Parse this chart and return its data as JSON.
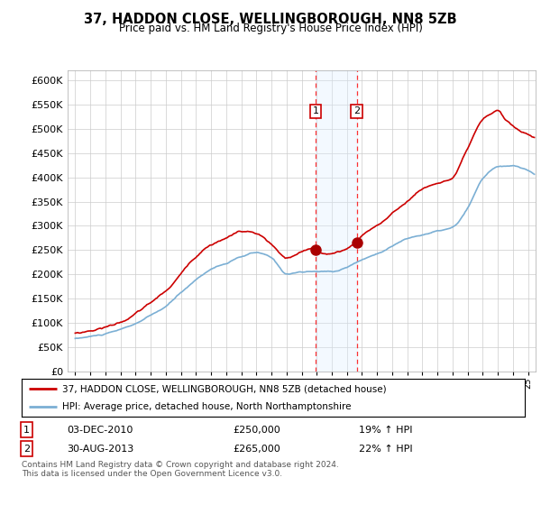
{
  "title": "37, HADDON CLOSE, WELLINGBOROUGH, NN8 5ZB",
  "subtitle": "Price paid vs. HM Land Registry's House Price Index (HPI)",
  "legend_line1": "37, HADDON CLOSE, WELLINGBOROUGH, NN8 5ZB (detached house)",
  "legend_line2": "HPI: Average price, detached house, North Northamptonshire",
  "sale1_date": "03-DEC-2010",
  "sale1_price": "£250,000",
  "sale1_hpi": "19% ↑ HPI",
  "sale2_date": "30-AUG-2013",
  "sale2_price": "£265,000",
  "sale2_hpi": "22% ↑ HPI",
  "footer": "Contains HM Land Registry data © Crown copyright and database right 2024.\nThis data is licensed under the Open Government Licence v3.0.",
  "hpi_color": "#7bafd4",
  "price_color": "#cc0000",
  "sale_marker_color": "#aa0000",
  "highlight_color": "#ddeeff",
  "sale1_x": 2010.92,
  "sale1_y": 250000,
  "sale2_x": 2013.66,
  "sale2_y": 265000,
  "ylim_min": 0,
  "ylim_max": 620000,
  "xlim_min": 1994.5,
  "xlim_max": 2025.5,
  "yticks": [
    0,
    50000,
    100000,
    150000,
    200000,
    250000,
    300000,
    350000,
    400000,
    450000,
    500000,
    550000,
    600000
  ],
  "xticks": [
    1995,
    1996,
    1997,
    1998,
    1999,
    2000,
    2001,
    2002,
    2003,
    2004,
    2005,
    2006,
    2007,
    2008,
    2009,
    2010,
    2011,
    2012,
    2013,
    2014,
    2015,
    2016,
    2017,
    2018,
    2019,
    2020,
    2021,
    2022,
    2023,
    2024,
    2025
  ]
}
